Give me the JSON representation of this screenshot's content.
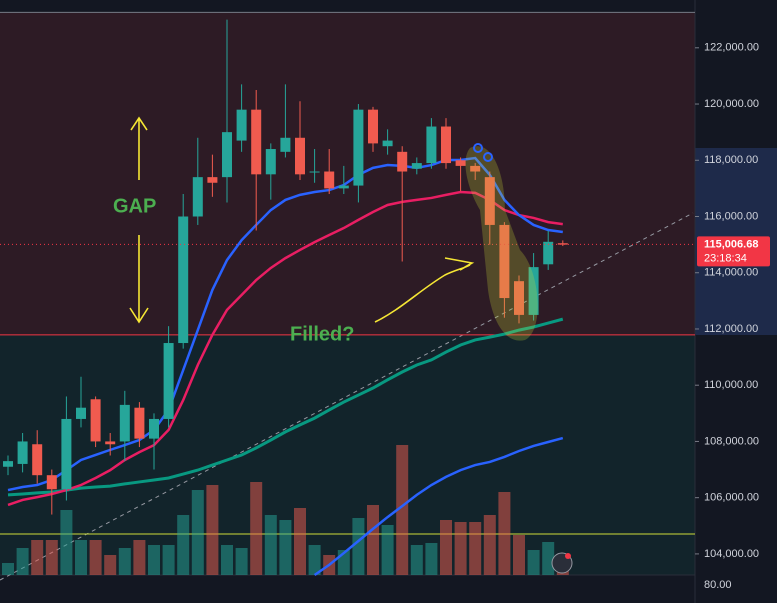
{
  "chart_data": {
    "type": "candlestick",
    "open": [
      107100,
      107200,
      107900,
      106800,
      106300,
      108800,
      109500,
      108000,
      108000,
      109200,
      108100,
      108800,
      111500,
      116000,
      117400,
      117400,
      118700,
      119800,
      117500,
      118300,
      118800,
      117600,
      117600,
      117000,
      117100,
      119800,
      118500,
      118300,
      117700,
      117900,
      119200,
      118000,
      117800,
      117400,
      115700,
      113700,
      112500,
      114300,
      115050
    ],
    "high": [
      107500,
      108300,
      108400,
      107000,
      109600,
      110300,
      109600,
      108300,
      109800,
      109400,
      109000,
      112100,
      116800,
      118800,
      118200,
      123000,
      120700,
      120500,
      118600,
      120700,
      120100,
      118400,
      118400,
      117800,
      120000,
      119900,
      119100,
      118500,
      118100,
      119500,
      119500,
      118100,
      117900,
      117600,
      115800,
      113900,
      114700,
      115500,
      115150
    ],
    "low": [
      106800,
      106900,
      106500,
      105400,
      105900,
      108500,
      107800,
      107500,
      107300,
      107800,
      107000,
      108500,
      111300,
      115700,
      116700,
      116500,
      118300,
      115500,
      116600,
      118100,
      117300,
      117200,
      116800,
      116800,
      116500,
      118300,
      118200,
      114400,
      117500,
      117700,
      117700,
      116900,
      117300,
      115000,
      112400,
      112200,
      112300,
      114100,
      114950
    ],
    "close": [
      107300,
      108000,
      106800,
      106300,
      108800,
      109200,
      108000,
      107900,
      109300,
      108100,
      108800,
      111500,
      116000,
      117400,
      117200,
      119000,
      119800,
      117500,
      118400,
      118800,
      117500,
      117600,
      117000,
      117100,
      119800,
      118600,
      118700,
      117600,
      117900,
      119200,
      117900,
      117800,
      117600,
      115700,
      113100,
      112500,
      114200,
      115100,
      115000
    ],
    "volume": [
      12,
      27,
      35,
      35,
      65,
      35,
      35,
      20,
      27,
      35,
      30,
      30,
      60,
      85,
      90,
      30,
      27,
      93,
      60,
      55,
      67,
      30,
      20,
      25,
      57,
      70,
      50,
      130,
      30,
      32,
      55,
      53,
      53,
      60,
      83,
      40,
      25,
      33,
      19
    ],
    "up_color": "#26a69a",
    "down_color": "#f05b4f",
    "vlim": [
      0,
      150
    ],
    "overlays": [
      {
        "color": "#089981",
        "values": [
          106100,
          106130,
          106170,
          106200,
          106270,
          106340,
          106380,
          106410,
          106490,
          106560,
          106630,
          106700,
          106840,
          106980,
          107160,
          107340,
          107520,
          107770,
          108050,
          108340,
          108590,
          108830,
          109120,
          109400,
          109650,
          109900,
          110190,
          110470,
          110720,
          110900,
          111180,
          111430,
          111610,
          111710,
          111820,
          111960,
          112070,
          112210,
          112350
        ]
      },
      {
        "color": "#e91e63",
        "values": [
          105740,
          105920,
          106020,
          106130,
          106270,
          106450,
          106700,
          106980,
          107340,
          107620,
          107870,
          108410,
          109470,
          110720,
          111790,
          112680,
          113210,
          113740,
          114170,
          114520,
          114810,
          115090,
          115340,
          115590,
          115880,
          116160,
          116410,
          116520,
          116590,
          116660,
          116770,
          116870,
          116840,
          116590,
          116230,
          116050,
          115950,
          115800,
          115730
        ]
      },
      {
        "color": "#2962ff",
        "values": [
          106270,
          106380,
          106450,
          106630,
          106980,
          107340,
          107520,
          107700,
          107870,
          108050,
          108410,
          109120,
          110540,
          111960,
          113390,
          114450,
          115160,
          115700,
          116230,
          116590,
          116770,
          116870,
          116940,
          117120,
          117480,
          117730,
          117830,
          117800,
          117730,
          117830,
          118010,
          118010,
          118080,
          117480,
          116590,
          116050,
          115700,
          115520,
          115450
        ]
      },
      {
        "color": "#2962ff",
        "values": [
          null,
          null,
          null,
          null,
          null,
          null,
          null,
          null,
          null,
          null,
          null,
          null,
          null,
          null,
          null,
          null,
          null,
          null,
          null,
          null,
          null,
          103250,
          103610,
          104030,
          104460,
          104890,
          105310,
          105700,
          106100,
          106450,
          106740,
          106980,
          107160,
          107270,
          107450,
          107660,
          107840,
          107980,
          108120
        ]
      }
    ],
    "hlines": [
      {
        "value": 123260,
        "color": "#787b86"
      },
      {
        "value": 111790,
        "color": "#f23645"
      },
      {
        "value": 104710,
        "color": "#cddc39"
      }
    ],
    "ylim": [
      103250,
      123700
    ],
    "yticks": [
      {
        "value": 104000,
        "label": "104,000.00"
      },
      {
        "value": 106000,
        "label": "106,000.00"
      },
      {
        "value": 108000,
        "label": "108,000.00"
      },
      {
        "value": 110000,
        "label": "110,000.00"
      },
      {
        "value": 112000,
        "label": "112,000.00"
      },
      {
        "value": 114000,
        "label": "114,000.00"
      },
      {
        "value": 116000,
        "label": "116,000.00"
      },
      {
        "value": 118000,
        "label": "118,000.00"
      },
      {
        "value": 120000,
        "label": "120,000.00"
      },
      {
        "value": 122000,
        "label": "122,000.00"
      }
    ],
    "last_price": {
      "value": 115006.68,
      "label": "115,006.68"
    },
    "countdown": "23:18:34",
    "lower_axis_label": "80.00",
    "annotations": [
      "GAP",
      "Filled?"
    ]
  }
}
